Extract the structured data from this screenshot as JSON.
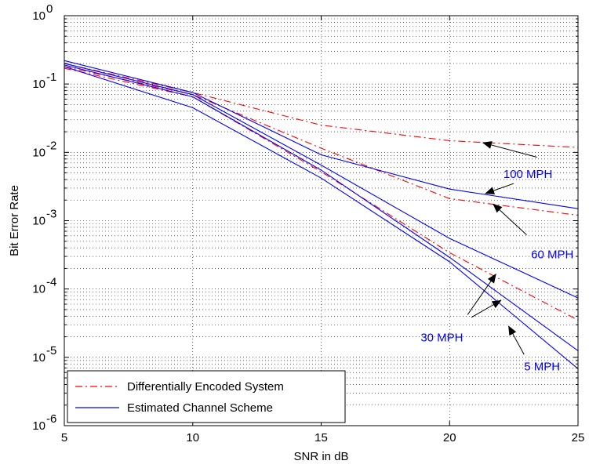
{
  "chart_data": {
    "type": "line",
    "xlabel": "SNR in dB",
    "ylabel": "Bit Error Rate",
    "xlim": [
      5,
      25
    ],
    "ylim": [
      1e-06,
      1
    ],
    "yscale": "log",
    "x_ticks": [
      5,
      10,
      15,
      20,
      25
    ],
    "y_ticks": [
      {
        "value": 1,
        "base": "10",
        "exp": "0"
      },
      {
        "value": 0.1,
        "base": "10",
        "exp": "-1"
      },
      {
        "value": 0.01,
        "base": "10",
        "exp": "-2"
      },
      {
        "value": 0.001,
        "base": "10",
        "exp": "-3"
      },
      {
        "value": 0.0001,
        "base": "10",
        "exp": "-4"
      },
      {
        "value": 1e-05,
        "base": "10",
        "exp": "-5"
      },
      {
        "value": 1e-06,
        "base": "10",
        "exp": "-6"
      }
    ],
    "grid": true,
    "legend_position": "bottom-left",
    "colors": {
      "differential": "#ff0000",
      "estimated": "#0000ff",
      "annotation": "#0000ff"
    },
    "legend": [
      {
        "label": "Differentially Encoded System",
        "style": "dashdot",
        "color": "#ff0000"
      },
      {
        "label": "Estimated Channel Scheme",
        "style": "solid",
        "color": "#0000ff"
      }
    ],
    "series": [
      {
        "group": "Differentially Encoded System",
        "speed": "100 MPH",
        "style": "dashdot",
        "color": "#ff0000",
        "x": [
          5,
          10,
          15,
          20,
          25
        ],
        "y": [
          0.2,
          0.075,
          0.025,
          0.0148,
          0.0118
        ]
      },
      {
        "group": "Differentially Encoded System",
        "speed": "60 MPH",
        "style": "dashdot",
        "color": "#ff0000",
        "x": [
          5,
          10,
          15,
          20,
          25
        ],
        "y": [
          0.18,
          0.07,
          0.0115,
          0.0021,
          0.0012
        ]
      },
      {
        "group": "Differentially Encoded System",
        "speed": "30 MPH",
        "style": "dashdot",
        "color": "#ff0000",
        "x": [
          5,
          10,
          15,
          20,
          25
        ],
        "y": [
          0.17,
          0.065,
          0.0052,
          0.00034,
          3.5e-05
        ]
      },
      {
        "group": "Estimated Channel Scheme",
        "speed": "100 MPH",
        "style": "solid",
        "color": "#0000ff",
        "x": [
          5,
          10,
          15,
          20,
          25
        ],
        "y": [
          0.22,
          0.075,
          0.0092,
          0.0029,
          0.0015
        ]
      },
      {
        "group": "Estimated Channel Scheme",
        "speed": "60 MPH",
        "style": "solid",
        "color": "#0000ff",
        "x": [
          5,
          10,
          15,
          20,
          25
        ],
        "y": [
          0.2,
          0.07,
          0.0065,
          0.00055,
          7.4e-05
        ]
      },
      {
        "group": "Estimated Channel Scheme",
        "speed": "30 MPH",
        "style": "solid",
        "color": "#0000ff",
        "x": [
          5,
          10,
          15,
          20,
          25
        ],
        "y": [
          0.19,
          0.065,
          0.0055,
          0.00029,
          1.25e-05
        ]
      },
      {
        "group": "Estimated Channel Scheme",
        "speed": "5 MPH",
        "style": "solid",
        "color": "#0000ff",
        "x": [
          5,
          10,
          15,
          20,
          25
        ],
        "y": [
          0.18,
          0.045,
          0.0042,
          0.00025,
          6.8e-06
        ]
      }
    ],
    "annotations": [
      {
        "text": "100 MPH",
        "x": 23.05,
        "y": 0.0048,
        "arrows": [
          {
            "from": [
              23.4,
              0.0085
            ],
            "to": [
              21.3,
              0.0138
            ]
          },
          {
            "from": [
              22.5,
              0.0035
            ],
            "to": [
              21.4,
              0.0025
            ]
          }
        ]
      },
      {
        "text": "60 MPH",
        "x": 24.0,
        "y": 0.00032,
        "arrows": [
          {
            "from": [
              23.0,
              0.00062
            ],
            "to": [
              21.7,
              0.00175
            ]
          }
        ]
      },
      {
        "text": "30 MPH",
        "x": 19.7,
        "y": 1.95e-05,
        "arrows": [
          {
            "from": [
              20.7,
              4.2e-05
            ],
            "to": [
              21.8,
              0.000165
            ]
          },
          {
            "from": [
              20.85,
              3.85e-05
            ],
            "to": [
              22.0,
              6.8e-05
            ]
          }
        ]
      },
      {
        "text": "5 MPH",
        "x": 23.6,
        "y": 7.3e-06,
        "arrows": [
          {
            "from": [
              22.9,
              1.1e-05
            ],
            "to": [
              22.3,
              2.85e-05
            ]
          }
        ]
      }
    ]
  }
}
